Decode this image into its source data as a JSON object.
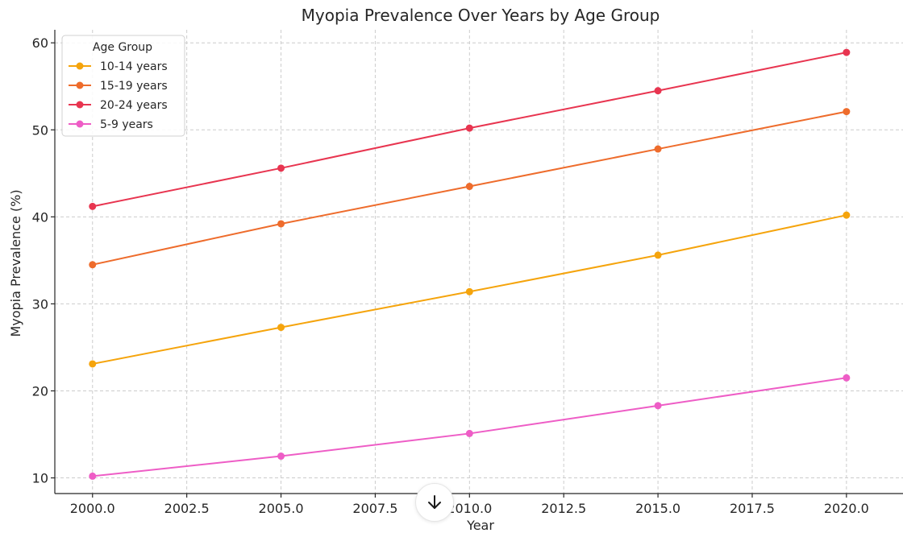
{
  "chart_data": {
    "type": "line",
    "title": "Myopia Prevalence Over Years by Age Group",
    "xlabel": "Year",
    "ylabel": "Myopia Prevalence (%)",
    "x": [
      2000,
      2005,
      2010,
      2015,
      2020
    ],
    "xlim": [
      1999,
      2021.5
    ],
    "ylim": [
      8.2,
      61.5
    ],
    "x_ticks": [
      "2000.0",
      "2002.5",
      "2005.0",
      "2007.5",
      "2010.0",
      "2012.5",
      "2015.0",
      "2017.5",
      "2020.0"
    ],
    "x_tick_values": [
      2000,
      2002.5,
      2005,
      2007.5,
      2010,
      2012.5,
      2015,
      2017.5,
      2020
    ],
    "y_ticks": [
      "10",
      "20",
      "30",
      "40",
      "50",
      "60"
    ],
    "y_tick_values": [
      10,
      20,
      30,
      40,
      50,
      60
    ],
    "grid": true,
    "legend": {
      "title": "Age Group",
      "placement": "top-left"
    },
    "series": [
      {
        "name": "10-14 years",
        "color": "#f5a40c",
        "values": [
          23.1,
          27.3,
          31.4,
          35.6,
          40.2
        ]
      },
      {
        "name": "15-19 years",
        "color": "#ee6c2c",
        "values": [
          34.5,
          39.2,
          43.5,
          47.8,
          52.1
        ]
      },
      {
        "name": "20-24 years",
        "color": "#e83550",
        "values": [
          41.2,
          45.6,
          50.2,
          54.5,
          58.9
        ]
      },
      {
        "name": "5-9 years",
        "color": "#ee5dc6",
        "values": [
          10.2,
          12.5,
          15.1,
          18.3,
          21.5
        ]
      }
    ]
  },
  "ui": {
    "scroll_button_icon": "arrow-down-icon"
  }
}
